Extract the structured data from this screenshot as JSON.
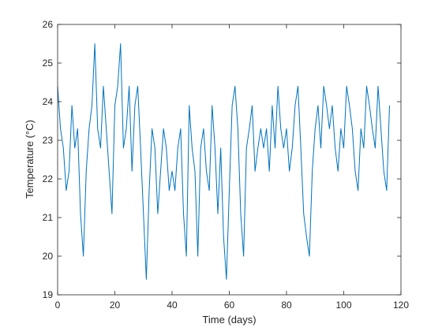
{
  "chart_data": {
    "type": "line",
    "xlabel": "Time (days)",
    "ylabel": "Temperature (°C)",
    "xlim": [
      0,
      120
    ],
    "ylim": [
      19,
      26
    ],
    "xticks": [
      0,
      20,
      40,
      60,
      80,
      100,
      120
    ],
    "yticks": [
      19,
      20,
      21,
      22,
      23,
      24,
      25,
      26
    ],
    "grid": false,
    "legend": "none",
    "series_color": "#0072BD",
    "series": [
      {
        "x": [
          0,
          1,
          2,
          3,
          4,
          5,
          6,
          7,
          8,
          9,
          10,
          11,
          12,
          13,
          14,
          15,
          16,
          17,
          18,
          19,
          20,
          21,
          22,
          23,
          24,
          25,
          26,
          27,
          28,
          29,
          30,
          31,
          32,
          33,
          34,
          35,
          36,
          37,
          38,
          39,
          40,
          41,
          42,
          43,
          44,
          45,
          46,
          47,
          48,
          49,
          50,
          51,
          52,
          53,
          54,
          55,
          56,
          57,
          58,
          59,
          60,
          61,
          62,
          63,
          64,
          65,
          66,
          67,
          68,
          69,
          70,
          71,
          72,
          73,
          74,
          75,
          76,
          77,
          78,
          79,
          80,
          81,
          82,
          83,
          84,
          85,
          86,
          87,
          88,
          89,
          90,
          91,
          92,
          93,
          94,
          95,
          96,
          97,
          98,
          99,
          100,
          101,
          102,
          103,
          104,
          105,
          106,
          107,
          108,
          109,
          110,
          111,
          112,
          113,
          114,
          115,
          116
        ],
        "y": [
          24.4,
          23.3,
          22.8,
          21.7,
          22.2,
          23.9,
          22.8,
          23.3,
          21.1,
          20.0,
          22.2,
          23.3,
          23.9,
          25.5,
          23.3,
          22.8,
          24.4,
          23.3,
          22.2,
          21.1,
          23.9,
          24.4,
          25.5,
          22.8,
          23.3,
          24.4,
          22.2,
          23.9,
          24.4,
          22.8,
          21.1,
          19.4,
          21.7,
          23.3,
          22.8,
          21.1,
          22.2,
          23.3,
          22.8,
          21.7,
          22.2,
          21.7,
          22.8,
          23.3,
          21.1,
          20.0,
          23.9,
          22.8,
          22.2,
          20.0,
          22.8,
          23.3,
          22.2,
          21.7,
          23.9,
          22.8,
          21.1,
          22.8,
          20.5,
          19.4,
          21.7,
          23.9,
          24.4,
          23.3,
          21.1,
          20.0,
          22.8,
          23.3,
          23.9,
          22.2,
          22.8,
          23.3,
          22.8,
          23.3,
          22.2,
          23.9,
          22.8,
          24.4,
          23.3,
          22.8,
          23.3,
          22.2,
          22.8,
          23.9,
          24.4,
          22.8,
          21.1,
          20.5,
          20.0,
          22.2,
          23.3,
          23.9,
          22.8,
          24.4,
          23.9,
          23.3,
          23.9,
          22.8,
          22.2,
          23.3,
          22.8,
          24.4,
          23.9,
          23.3,
          22.2,
          21.7,
          23.3,
          22.8,
          24.4,
          23.9,
          23.3,
          22.8,
          24.4,
          23.3,
          22.2,
          21.7,
          23.9
        ]
      }
    ]
  }
}
